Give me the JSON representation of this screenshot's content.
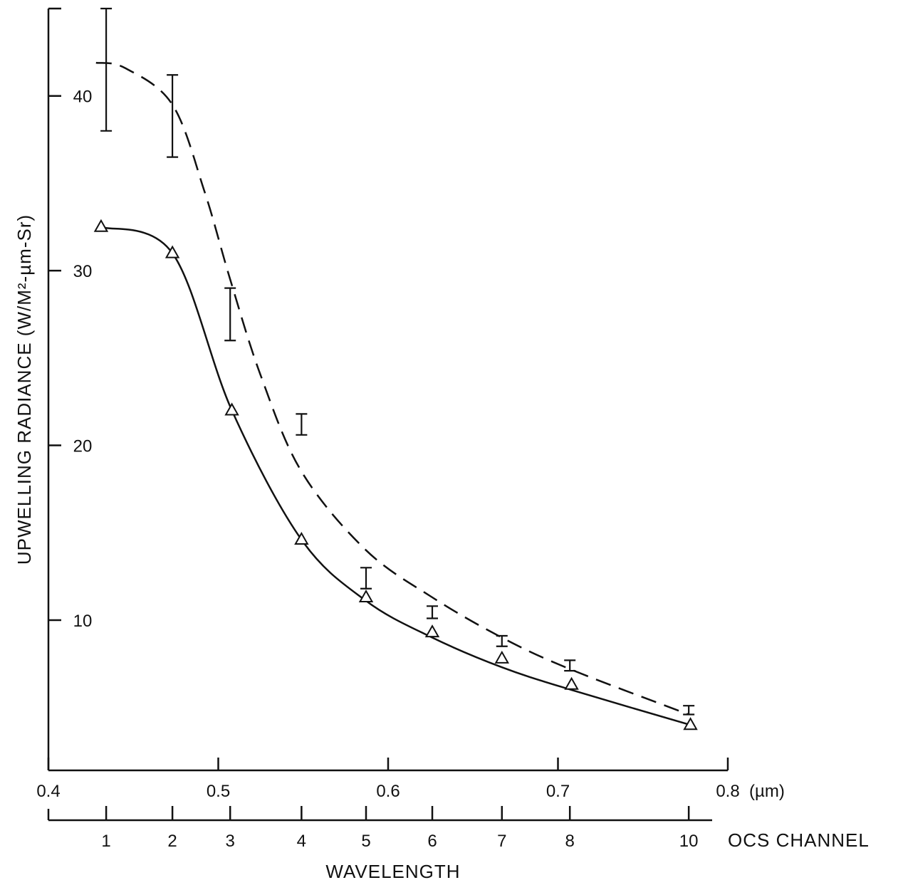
{
  "chart_data": {
    "type": "scatter",
    "ylabel": "UPWELLING RADIANCE (W/M²-µm-Sr)",
    "xlabel": "WAVELENGTH",
    "y_ticks": [
      "10",
      "20",
      "30",
      "40"
    ],
    "y_tick_values": [
      10,
      20,
      30,
      40
    ],
    "wavelength_ticks": [
      "0.4",
      "0.5",
      "0.6",
      "0.7",
      "0.8"
    ],
    "wavelength_tick_values": [
      0.4,
      0.5,
      0.6,
      0.7,
      0.8
    ],
    "wavelength_unit": "(µm)",
    "channel_axis_label": "OCS CHANNEL",
    "channels": [
      {
        "label": "1",
        "wavelength": 0.434
      },
      {
        "label": "2",
        "wavelength": 0.473
      },
      {
        "label": "3",
        "wavelength": 0.507
      },
      {
        "label": "4",
        "wavelength": 0.549
      },
      {
        "label": "5",
        "wavelength": 0.587
      },
      {
        "label": "6",
        "wavelength": 0.626
      },
      {
        "label": "7",
        "wavelength": 0.667
      },
      {
        "label": "8",
        "wavelength": 0.707
      },
      {
        "label": "10",
        "wavelength": 0.777
      }
    ],
    "xlim": [
      0.4,
      0.8
    ],
    "ylim": [
      1.4,
      45
    ],
    "series": [
      {
        "style": "solid",
        "marker": "triangle",
        "points": [
          {
            "x": 0.431,
            "y": 32.5
          },
          {
            "x": 0.473,
            "y": 31.0
          },
          {
            "x": 0.508,
            "y": 22.0
          },
          {
            "x": 0.549,
            "y": 14.6
          },
          {
            "x": 0.587,
            "y": 11.3
          },
          {
            "x": 0.626,
            "y": 9.3
          },
          {
            "x": 0.667,
            "y": 7.8
          },
          {
            "x": 0.708,
            "y": 6.3
          },
          {
            "x": 0.778,
            "y": 4.0
          }
        ],
        "curve": [
          {
            "x": 0.431,
            "y": 32.5
          },
          {
            "x": 0.473,
            "y": 31.0
          },
          {
            "x": 0.508,
            "y": 22.0
          },
          {
            "x": 0.549,
            "y": 14.6
          },
          {
            "x": 0.587,
            "y": 11.1
          },
          {
            "x": 0.626,
            "y": 9.0
          },
          {
            "x": 0.667,
            "y": 7.3
          },
          {
            "x": 0.708,
            "y": 6.0
          },
          {
            "x": 0.778,
            "y": 4.0
          }
        ]
      },
      {
        "style": "dashed",
        "marker": "errorbar",
        "error_bars": [
          {
            "x": 0.434,
            "low": 38.0,
            "high": 45.0
          },
          {
            "x": 0.473,
            "low": 36.5,
            "high": 41.2
          },
          {
            "x": 0.507,
            "low": 26.0,
            "high": 29.0
          },
          {
            "x": 0.549,
            "low": 20.6,
            "high": 21.8
          },
          {
            "x": 0.587,
            "low": 11.8,
            "high": 13.0
          },
          {
            "x": 0.626,
            "low": 10.1,
            "high": 10.8
          },
          {
            "x": 0.667,
            "low": 8.5,
            "high": 9.1
          },
          {
            "x": 0.707,
            "low": 7.1,
            "high": 7.7
          },
          {
            "x": 0.777,
            "low": 4.6,
            "high": 5.1
          }
        ],
        "curve": [
          {
            "x": 0.428,
            "y": 41.9
          },
          {
            "x": 0.445,
            "y": 41.6
          },
          {
            "x": 0.473,
            "y": 39.5
          },
          {
            "x": 0.492,
            "y": 34.5
          },
          {
            "x": 0.507,
            "y": 29.5
          },
          {
            "x": 0.525,
            "y": 24.0
          },
          {
            "x": 0.549,
            "y": 18.5
          },
          {
            "x": 0.587,
            "y": 14.0
          },
          {
            "x": 0.626,
            "y": 11.3
          },
          {
            "x": 0.667,
            "y": 9.0
          },
          {
            "x": 0.707,
            "y": 7.2
          },
          {
            "x": 0.777,
            "y": 4.6
          }
        ]
      }
    ]
  }
}
